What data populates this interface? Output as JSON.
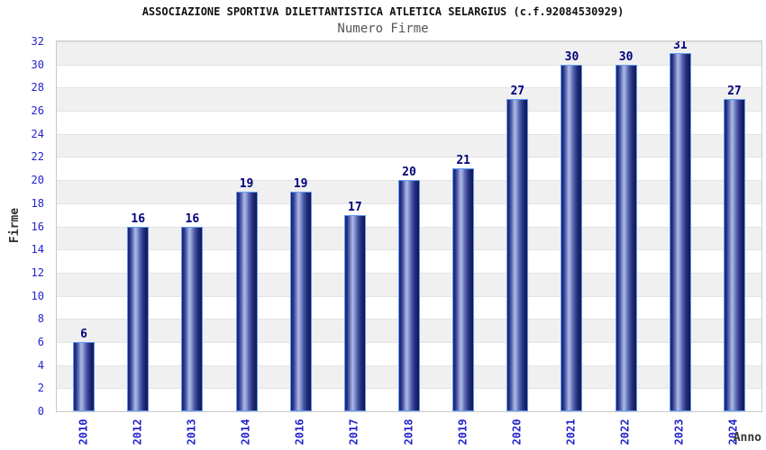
{
  "chart_data": {
    "type": "bar",
    "title": "ASSOCIAZIONE SPORTIVA DILETTANTISTICA ATLETICA SELARGIUS (c.f.92084530929)",
    "subtitle": "Numero Firme",
    "xlabel": "Anno",
    "ylabel": "Firme",
    "categories": [
      "2010",
      "2012",
      "2013",
      "2014",
      "2016",
      "2017",
      "2018",
      "2019",
      "2020",
      "2021",
      "2022",
      "2023",
      "2024"
    ],
    "values": [
      6,
      16,
      16,
      19,
      19,
      17,
      20,
      21,
      27,
      30,
      30,
      31,
      27
    ],
    "ylim": [
      0,
      32
    ],
    "ytick_step": 2,
    "legend": "none",
    "grid": "horizontal gridlines every 2 units with alternating shaded bands (shaded: 2-4, 6-8, 10-12, 14-16, 18-20, 22-24, 26-28, 30-32)",
    "value_labels": "above each bar",
    "x_tick_rotation_deg": -90,
    "colors": {
      "bar_dark": "#12164f",
      "bar_mid": "#2d3a8c",
      "bar_highlight": "#aebae6",
      "bar_border": "#5e9cf5",
      "tick_text": "#2323cd",
      "value_label_text": "#00007d",
      "title_text": "#111111",
      "subtitle_text": "#555555",
      "axis_title_text": "#333333",
      "band_shaded": "#f0f0f0",
      "band_plain": "#ffffff",
      "gridline": "#e3e3e3",
      "plot_border": "#c9c9c9",
      "background": "#ffffff"
    }
  }
}
